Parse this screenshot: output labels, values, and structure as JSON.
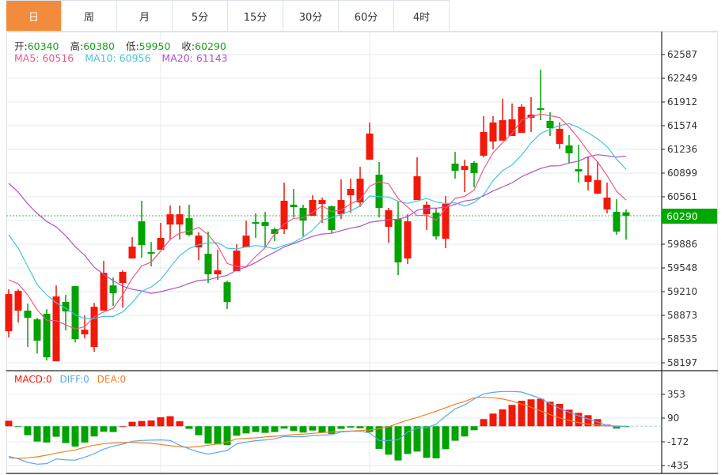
{
  "tabs": [
    {
      "label": "日",
      "active": true
    },
    {
      "label": "周"
    },
    {
      "label": "月"
    },
    {
      "label": "5分"
    },
    {
      "label": "15分"
    },
    {
      "label": "30分"
    },
    {
      "label": "60分"
    },
    {
      "label": "4时"
    }
  ],
  "ohlc_legend": {
    "open_label": "开:",
    "open": "60340",
    "high_label": "高:",
    "high": "60380",
    "low_label": "低:",
    "low": "59950",
    "close_label": "收:",
    "close": "60290"
  },
  "ma_legend": {
    "ma5": "MA5: 60516",
    "ma10": "MA10: 60956",
    "ma20": "MA20: 61143"
  },
  "macd_legend": {
    "macd": "MACD:0",
    "diff": "DIFF:0",
    "dea": "DEA:0"
  },
  "current_price": "60290",
  "colors": {
    "up": "#f0190a",
    "down": "#00a300",
    "ma5": "#f0588a",
    "ma10": "#3fc6e0",
    "ma20": "#b050c8",
    "diff": "#5aa8f0",
    "dea": "#f57f22",
    "accent": "#f28c3c"
  },
  "chart_data": {
    "type": "candlestick",
    "price_axis": {
      "ticks": [
        "62587",
        "62249",
        "61912",
        "61574",
        "61236",
        "60899",
        "60561",
        "60224",
        "59886",
        "59548",
        "59210",
        "58873",
        "58535",
        "58197"
      ],
      "range": [
        58197,
        62587
      ],
      "hidden_tick": "60224"
    },
    "macd_axis": {
      "ticks": [
        "353",
        "90",
        "-172",
        "-435"
      ],
      "values": [
        353,
        90,
        -172,
        -435
      ]
    },
    "candles": [
      [
        58646,
        59243,
        58556,
        59175
      ],
      [
        58939,
        59243,
        58770,
        59220
      ],
      [
        58939,
        59040,
        58421,
        58838
      ],
      [
        58815,
        58838,
        58331,
        58511
      ],
      [
        58894,
        58961,
        58229,
        58275
      ],
      [
        58218,
        59299,
        58218,
        59141
      ],
      [
        59063,
        59164,
        58657,
        58928
      ],
      [
        59288,
        59288,
        58488,
        58533
      ],
      [
        58601,
        58871,
        58545,
        58668
      ],
      [
        58421,
        59051,
        58353,
        58995
      ],
      [
        58939,
        59648,
        58939,
        59479
      ],
      [
        59299,
        59412,
        59006,
        59187
      ],
      [
        59333,
        59513,
        58984,
        59491
      ],
      [
        59682,
        59986,
        59682,
        59851
      ],
      [
        60211,
        60504,
        59693,
        59873
      ],
      [
        59772,
        59918,
        59569,
        59750
      ],
      [
        59806,
        60189,
        59806,
        59975
      ],
      [
        60166,
        60436,
        59952,
        60312
      ],
      [
        60166,
        60436,
        59952,
        60312
      ],
      [
        60256,
        60448,
        59997,
        60020
      ],
      [
        59840,
        60054,
        59659,
        60008
      ],
      [
        59750,
        60065,
        59333,
        59457
      ],
      [
        59457,
        59806,
        59378,
        59513
      ],
      [
        59344,
        59367,
        58961,
        59063
      ],
      [
        59502,
        59885,
        59502,
        59795
      ],
      [
        59840,
        60222,
        59840,
        60008
      ],
      [
        60200,
        60324,
        59975,
        60177
      ],
      [
        60200,
        60346,
        59840,
        60144
      ],
      [
        60099,
        60121,
        59930,
        60031
      ],
      [
        60099,
        60763,
        60031,
        60504
      ],
      [
        60448,
        60673,
        60267,
        60414
      ],
      [
        60403,
        60448,
        59997,
        60222
      ],
      [
        60290,
        60583,
        60290,
        60515
      ],
      [
        60459,
        60549,
        60189,
        60515
      ],
      [
        60425,
        60436,
        60042,
        60087
      ],
      [
        60312,
        60808,
        60245,
        60515
      ],
      [
        60583,
        60819,
        60335,
        60673
      ],
      [
        60481,
        60988,
        60414,
        60819
      ],
      [
        61089,
        61619,
        61089,
        61461
      ],
      [
        60876,
        61056,
        60267,
        60403
      ],
      [
        60132,
        60403,
        59907,
        60369
      ],
      [
        60245,
        60493,
        59446,
        59626
      ],
      [
        59682,
        60312,
        59603,
        60211
      ],
      [
        60515,
        61123,
        60515,
        60853
      ],
      [
        60312,
        60493,
        60087,
        60448
      ],
      [
        60335,
        60403,
        59952,
        59997
      ],
      [
        59963,
        60571,
        59828,
        60459
      ],
      [
        61033,
        61202,
        60819,
        60932
      ],
      [
        60943,
        61089,
        60628,
        60999
      ],
      [
        61045,
        61067,
        60695,
        60898
      ],
      [
        61146,
        61709,
        61123,
        61484
      ],
      [
        61348,
        61709,
        61236,
        61619
      ],
      [
        61360,
        61956,
        61360,
        61652
      ],
      [
        61427,
        61889,
        61427,
        61664
      ],
      [
        61472,
        61878,
        61472,
        61844
      ],
      [
        61686,
        61979,
        61484,
        61731
      ],
      [
        61821,
        62373,
        61652,
        61799
      ],
      [
        61641,
        61765,
        61427,
        61540
      ],
      [
        61315,
        61619,
        61247,
        61529
      ],
      [
        61292,
        61439,
        61045,
        61180
      ],
      [
        60954,
        61303,
        60763,
        60921
      ],
      [
        60774,
        61134,
        60650,
        60865
      ],
      [
        60605,
        61067,
        60605,
        60797
      ],
      [
        60380,
        60763,
        60324,
        60549
      ],
      [
        60346,
        60526,
        60020,
        60065
      ],
      [
        60340,
        60380,
        59950,
        60290
      ]
    ],
    "candle_fields": [
      "open",
      "high",
      "low",
      "close"
    ],
    "ma_lead_in": {
      "ma5": [
        59378,
        59322,
        59164,
        58950
      ],
      "ma10": [
        60020,
        59828,
        59569,
        59310,
        59164,
        59051,
        58973,
        58883,
        58826
      ],
      "ma20": [
        60752,
        60628,
        60459,
        60324,
        60211,
        60132,
        60008,
        59851,
        59727,
        59558,
        59457,
        59367,
        59288,
        59243,
        59220,
        59187,
        59209,
        59243,
        59277
      ]
    },
    "macd_hist": [
      61,
      -3,
      -99,
      -169,
      -180,
      -116,
      -186,
      -224,
      -180,
      -113,
      -61,
      -64,
      0,
      49,
      58,
      64,
      99,
      111,
      55,
      -29,
      -99,
      -192,
      -201,
      -207,
      -105,
      -79,
      -64,
      -73,
      -64,
      -26,
      -52,
      -70,
      -47,
      -70,
      -84,
      -29,
      -15,
      -23,
      -64,
      -250,
      -314,
      -378,
      -306,
      -280,
      -349,
      -355,
      -253,
      -160,
      -113,
      -44,
      79,
      140,
      186,
      236,
      282,
      297,
      303,
      271,
      247,
      183,
      148,
      122,
      79,
      17,
      -26,
      -3
    ],
    "diff": [
      -332,
      -361,
      -399,
      -419,
      -413,
      -361,
      -372,
      -375,
      -343,
      -303,
      -253,
      -221,
      -198,
      -166,
      -157,
      -154,
      -151,
      -157,
      -210,
      -250,
      -285,
      -308,
      -288,
      -268,
      -195,
      -175,
      -160,
      -151,
      -140,
      -113,
      -116,
      -116,
      -102,
      -99,
      -93,
      -64,
      -55,
      -55,
      -73,
      -157,
      -157,
      -151,
      -64,
      -20,
      -15,
      23,
      111,
      192,
      236,
      300,
      358,
      375,
      384,
      384,
      378,
      343,
      308,
      250,
      198,
      154,
      116,
      81,
      47,
      9,
      -6,
      0
    ],
    "dea": [
      -349,
      -355,
      -349,
      -338,
      -320,
      -297,
      -279,
      -262,
      -233,
      -210,
      -192,
      -186,
      -180,
      -180,
      -183,
      -189,
      -201,
      -215,
      -227,
      -233,
      -224,
      -210,
      -195,
      -175,
      -140,
      -134,
      -128,
      -119,
      -111,
      -102,
      -93,
      -87,
      -79,
      -70,
      -64,
      -58,
      -52,
      -47,
      -41,
      -29,
      -6,
      32,
      67,
      96,
      131,
      166,
      204,
      244,
      274,
      314,
      320,
      314,
      300,
      279,
      244,
      210,
      169,
      128,
      93,
      64,
      41,
      23,
      12,
      6,
      3,
      0
    ]
  }
}
